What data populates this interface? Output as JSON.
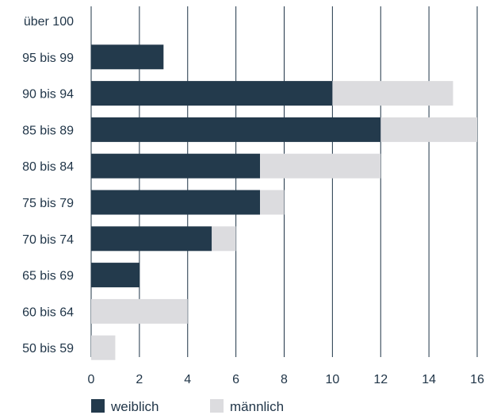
{
  "chart_data": {
    "type": "bar",
    "orientation": "horizontal",
    "stacked": true,
    "categories": [
      "über 100",
      "95 bis 99",
      "90 bis 94",
      "85 bis 89",
      "80 bis 84",
      "75 bis 79",
      "70 bis 74",
      "65 bis 69",
      "60 bis 64",
      "50 bis 59"
    ],
    "series": [
      {
        "name": "weiblich",
        "color": "#233a4c",
        "values": [
          0,
          3,
          10,
          12,
          7,
          7,
          5,
          2,
          0,
          0
        ]
      },
      {
        "name": "männlich",
        "color": "#dcdcdf",
        "values": [
          0,
          0,
          5,
          4,
          5,
          1,
          1,
          0,
          4,
          1
        ]
      }
    ],
    "xlim": [
      0,
      16
    ],
    "xticks": [
      "0",
      "2",
      "4",
      "6",
      "8",
      "10",
      "12",
      "14",
      "16"
    ],
    "grid": "vertical",
    "legend": "bottom"
  }
}
